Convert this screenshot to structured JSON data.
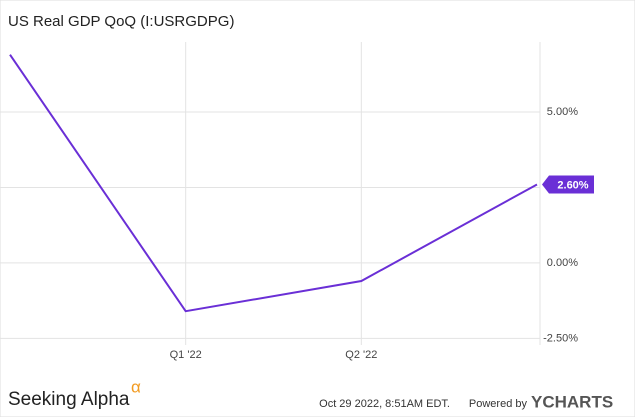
{
  "chart_data": {
    "type": "line",
    "title": "US Real GDP QoQ (I:USRGDPG)",
    "categories": [
      null,
      "Q1 '22",
      "Q2 '22",
      null
    ],
    "series": [
      {
        "name": "US Real GDP QoQ",
        "color": "#6a2fd6",
        "values": [
          6.9,
          -1.6,
          -0.6,
          2.6
        ],
        "value_labels": [
          null,
          null,
          null,
          "2.60%"
        ]
      }
    ],
    "ylim": [
      -2.72,
      7.32
    ],
    "yticks": [
      {
        "value": -2.5,
        "label": "-2.50%"
      },
      {
        "value": 0,
        "label": "0.00%"
      },
      {
        "value": 5,
        "label": "5.00%"
      }
    ],
    "ygrid": [
      -2.5,
      0,
      2.5,
      5
    ],
    "grid": true
  },
  "footer": {
    "brand": "Seeking Alpha",
    "brand_mark": "α",
    "timestamp": "Oct 29 2022, 8:51AM EDT.",
    "powered": "Powered by",
    "provider": "YCHARTS"
  }
}
